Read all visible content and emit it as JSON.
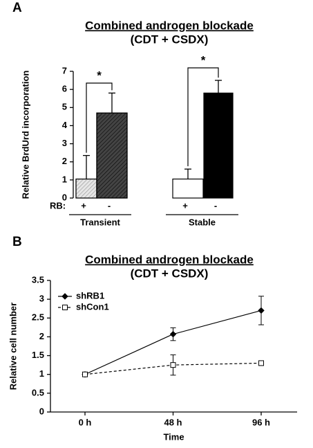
{
  "chart_data": [
    {
      "type": "bar",
      "label": "A",
      "title": "Combined androgen blockade",
      "subtitle": "(CDT + CSDX)",
      "ylabel": "Relative BrdUrd incorporation",
      "category_axis_label": "RB:",
      "categories": [
        "+",
        "-",
        "+",
        "-"
      ],
      "groups": [
        "Transient",
        "Stable"
      ],
      "values": [
        1.05,
        4.7,
        1.05,
        5.8
      ],
      "errors": [
        1.3,
        1.1,
        0.55,
        0.7
      ],
      "colors": [
        "#e6e6e6",
        "#444444",
        "#ffffff",
        "#000000"
      ],
      "hatch": [
        true,
        true,
        false,
        false
      ],
      "annotations": [
        "*",
        "*"
      ],
      "ylim": [
        0,
        7
      ],
      "yticks": [
        0,
        1,
        2,
        3,
        4,
        5,
        6,
        7
      ]
    },
    {
      "type": "line",
      "label": "B",
      "title": "Combined androgen blockade",
      "subtitle": "(CDT + CSDX)",
      "ylabel": "Relative cell number",
      "xlabel": "Time",
      "categories": [
        "0 h",
        "48 h",
        "96 h"
      ],
      "series": [
        {
          "name": "shRB1",
          "color": "#000000",
          "style": "solid",
          "marker": "diamond",
          "marker_fill": "#000000",
          "values": [
            1,
            2.07,
            2.7
          ],
          "errors": [
            0.05,
            0.17,
            0.38
          ]
        },
        {
          "name": "shCon1",
          "color": "#000000",
          "style": "dashed",
          "marker": "square",
          "marker_fill": "#ffffff",
          "values": [
            1,
            1.25,
            1.3
          ],
          "errors": [
            0.05,
            0.27,
            0.06
          ]
        }
      ],
      "legend": "upper left",
      "ylim": [
        0,
        3.5
      ],
      "yticks": [
        0,
        0.5,
        1,
        1.5,
        2,
        2.5,
        3,
        3.5
      ]
    }
  ]
}
